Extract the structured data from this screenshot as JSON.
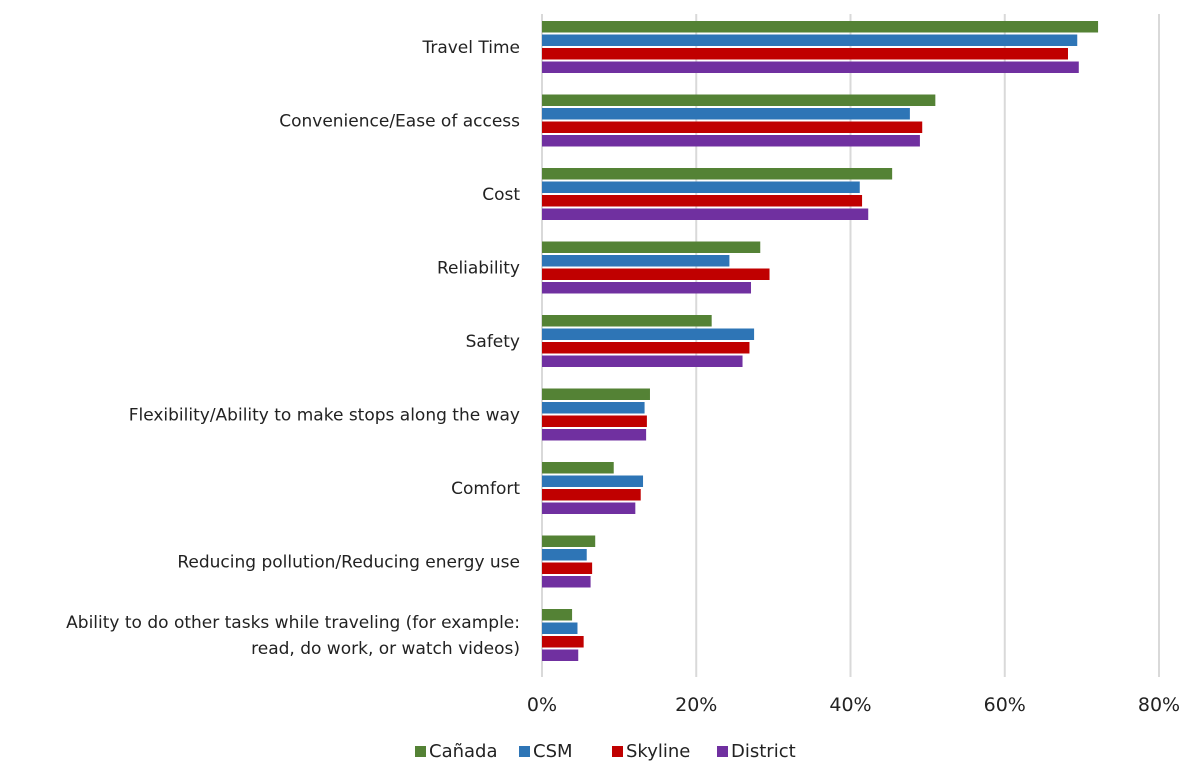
{
  "chart_data": {
    "type": "bar",
    "orientation": "horizontal",
    "title": "",
    "xlabel": "",
    "ylabel": "",
    "categories": [
      [
        "Travel Time"
      ],
      [
        "Convenience/Ease of access"
      ],
      [
        "Cost"
      ],
      [
        "Reliability"
      ],
      [
        "Safety"
      ],
      [
        "Flexibility/Ability to make stops along the way"
      ],
      [
        "Comfort"
      ],
      [
        "Reducing pollution/Reducing energy use"
      ],
      [
        "Ability to do other tasks while traveling (for example:",
        "read, do work, or watch videos)"
      ]
    ],
    "series": [
      {
        "name": "Cañada",
        "color": "#548235",
        "values": [
          72.1,
          51.0,
          45.4,
          28.3,
          22.0,
          14.0,
          9.3,
          6.9,
          3.9
        ]
      },
      {
        "name": "CSM",
        "color": "#2e75b6",
        "values": [
          69.4,
          47.7,
          41.2,
          24.3,
          27.5,
          13.3,
          13.1,
          5.8,
          4.6
        ]
      },
      {
        "name": "Skyline",
        "color": "#c00000",
        "values": [
          68.2,
          49.3,
          41.5,
          29.5,
          26.9,
          13.6,
          12.8,
          6.5,
          5.4
        ]
      },
      {
        "name": "District",
        "color": "#7030a0",
        "values": [
          69.6,
          49.0,
          42.3,
          27.1,
          26.0,
          13.5,
          12.1,
          6.3,
          4.7
        ]
      }
    ],
    "xlim": [
      0,
      80
    ],
    "xticks": [
      0,
      20,
      40,
      60,
      80
    ],
    "tick_labels": [
      "0%",
      "20%",
      "40%",
      "60%",
      "80%"
    ],
    "grid": "vertical",
    "legend": "bottom"
  }
}
